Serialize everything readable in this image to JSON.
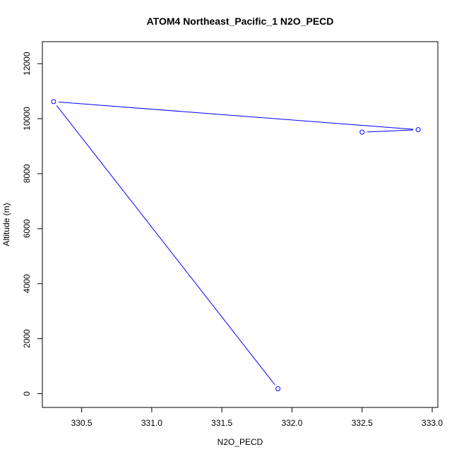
{
  "chart_data": {
    "type": "line",
    "title": "ATOM4 Northeast_Pacific_1 N2O_PECD",
    "xlabel": "N2O_PECD",
    "ylabel": "Altitude (m)",
    "xlim": [
      330.22,
      333.04
    ],
    "ylim": [
      -500,
      12800
    ],
    "x_ticks": [
      "330.5",
      "331.0",
      "331.5",
      "332.0",
      "332.5",
      "333.0"
    ],
    "y_ticks": [
      "0",
      "2000",
      "4000",
      "6000",
      "8000",
      "10000",
      "12000"
    ],
    "series": [
      {
        "color": "#0000ff",
        "marker": "open-circle",
        "points": [
          {
            "x": 331.9,
            "y": 180
          },
          {
            "x": 330.3,
            "y": 10620
          },
          {
            "x": 332.9,
            "y": 9600
          },
          {
            "x": 332.5,
            "y": 9510
          }
        ]
      }
    ],
    "grid": false,
    "legend": "none"
  }
}
